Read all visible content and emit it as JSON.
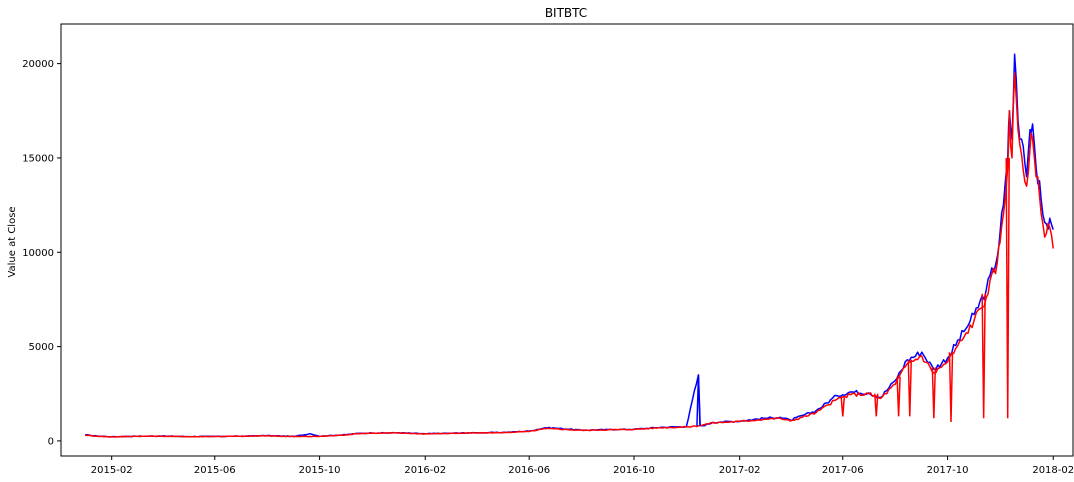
{
  "chart_data": {
    "type": "line",
    "title": "BITBTC",
    "xlabel": "",
    "ylabel": "Value at Close",
    "xlim": [
      "2014-12-04",
      "2018-02-24"
    ],
    "ylim": [
      -800,
      22100
    ],
    "x_ticks": [
      "2015-02",
      "2015-06",
      "2015-10",
      "2016-02",
      "2016-06",
      "2016-10",
      "2017-02",
      "2017-06",
      "2017-10",
      "2018-02"
    ],
    "y_ticks": [
      0,
      5000,
      10000,
      15000,
      20000
    ],
    "grid": false,
    "colors": {
      "series_1": "#0000ff",
      "series_2": "#ff0000"
    },
    "series": [
      {
        "color": "#0000ff",
        "x": [
          "2015-01-01",
          "2015-01-15",
          "2015-02-01",
          "2015-03-01",
          "2015-04-01",
          "2015-05-01",
          "2015-06-01",
          "2015-07-01",
          "2015-08-01",
          "2015-09-01",
          "2015-09-20",
          "2015-10-01",
          "2015-11-01",
          "2015-11-15",
          "2015-12-01",
          "2016-01-01",
          "2016-02-01",
          "2016-03-01",
          "2016-04-01",
          "2016-05-01",
          "2016-06-01",
          "2016-06-20",
          "2016-07-01",
          "2016-08-01",
          "2016-09-01",
          "2016-10-01",
          "2016-11-01",
          "2016-12-01",
          "2016-12-15",
          "2016-12-17",
          "2016-12-20",
          "2017-01-01",
          "2017-01-10",
          "2017-02-01",
          "2017-03-01",
          "2017-03-20",
          "2017-04-01",
          "2017-05-01",
          "2017-05-25",
          "2017-06-10",
          "2017-07-01",
          "2017-07-15",
          "2017-08-01",
          "2017-08-15",
          "2017-09-01",
          "2017-09-15",
          "2017-10-01",
          "2017-10-20",
          "2017-11-01",
          "2017-11-15",
          "2017-11-28",
          "2017-12-01",
          "2017-12-05",
          "2017-12-10",
          "2017-12-12",
          "2017-12-15",
          "2017-12-18",
          "2017-12-22",
          "2017-12-26",
          "2018-01-01",
          "2018-01-05",
          "2018-01-08",
          "2018-01-12",
          "2018-01-16",
          "2018-01-20",
          "2018-01-24",
          "2018-01-28",
          "2018-02-01"
        ],
        "values": [
          320,
          260,
          220,
          250,
          260,
          230,
          240,
          250,
          280,
          240,
          380,
          250,
          330,
          400,
          420,
          430,
          380,
          410,
          430,
          450,
          520,
          700,
          680,
          570,
          600,
          620,
          720,
          760,
          3500,
          820,
          800,
          980,
          1000,
          1050,
          1200,
          1250,
          1100,
          1600,
          2400,
          2600,
          2550,
          2300,
          3200,
          4300,
          4700,
          3800,
          4400,
          5800,
          6700,
          8000,
          9800,
          11000,
          12500,
          15000,
          17500,
          16000,
          20500,
          17000,
          16000,
          14000,
          16500,
          16800,
          14500,
          13800,
          12000,
          11500,
          11800,
          11200
        ]
      },
      {
        "color": "#ff0000",
        "x": [
          "2015-01-01",
          "2015-01-15",
          "2015-02-01",
          "2015-03-01",
          "2015-04-01",
          "2015-05-01",
          "2015-06-01",
          "2015-07-01",
          "2015-08-01",
          "2015-09-01",
          "2015-10-01",
          "2015-11-01",
          "2015-11-15",
          "2015-12-01",
          "2016-01-01",
          "2016-02-01",
          "2016-03-01",
          "2016-04-01",
          "2016-05-01",
          "2016-06-01",
          "2016-06-20",
          "2016-07-01",
          "2016-08-01",
          "2016-09-01",
          "2016-10-01",
          "2016-11-01",
          "2016-12-01",
          "2016-12-15",
          "2017-01-01",
          "2017-01-10",
          "2017-02-01",
          "2017-03-01",
          "2017-03-20",
          "2017-04-01",
          "2017-05-01",
          "2017-05-25",
          "2017-06-10",
          "2017-07-01",
          "2017-07-15",
          "2017-08-01",
          "2017-08-15",
          "2017-09-01",
          "2017-09-15",
          "2017-10-01",
          "2017-10-20",
          "2017-11-01",
          "2017-11-15",
          "2017-11-28",
          "2017-12-01",
          "2017-12-05",
          "2017-12-10",
          "2017-12-12",
          "2017-12-15",
          "2017-12-18",
          "2017-12-22",
          "2017-12-26",
          "2018-01-01",
          "2018-01-05",
          "2018-01-08",
          "2018-01-12",
          "2018-01-16",
          "2018-01-20",
          "2018-01-24",
          "2018-01-28",
          "2018-02-01"
        ],
        "values": [
          310,
          250,
          210,
          245,
          250,
          225,
          235,
          245,
          270,
          230,
          240,
          320,
          390,
          410,
          420,
          370,
          400,
          420,
          440,
          500,
          650,
          640,
          560,
          590,
          610,
          700,
          740,
          800,
          960,
          980,
          1030,
          1150,
          1200,
          1050,
          1500,
          2200,
          2450,
          2500,
          2250,
          3000,
          4100,
          4500,
          3600,
          4200,
          5500,
          6400,
          7600,
          9500,
          10500,
          12000,
          14500,
          17500,
          15000,
          19500,
          16500,
          15200,
          13500,
          15500,
          16000,
          14000,
          13000,
          11500,
          11000,
          11300,
          10200
        ]
      }
    ],
    "annotations": "Both series show sharp, brief downward spikes to near zero around 2017-06 through 2017-12; the blue series shows a spike to about 3500 near 2016-12."
  }
}
